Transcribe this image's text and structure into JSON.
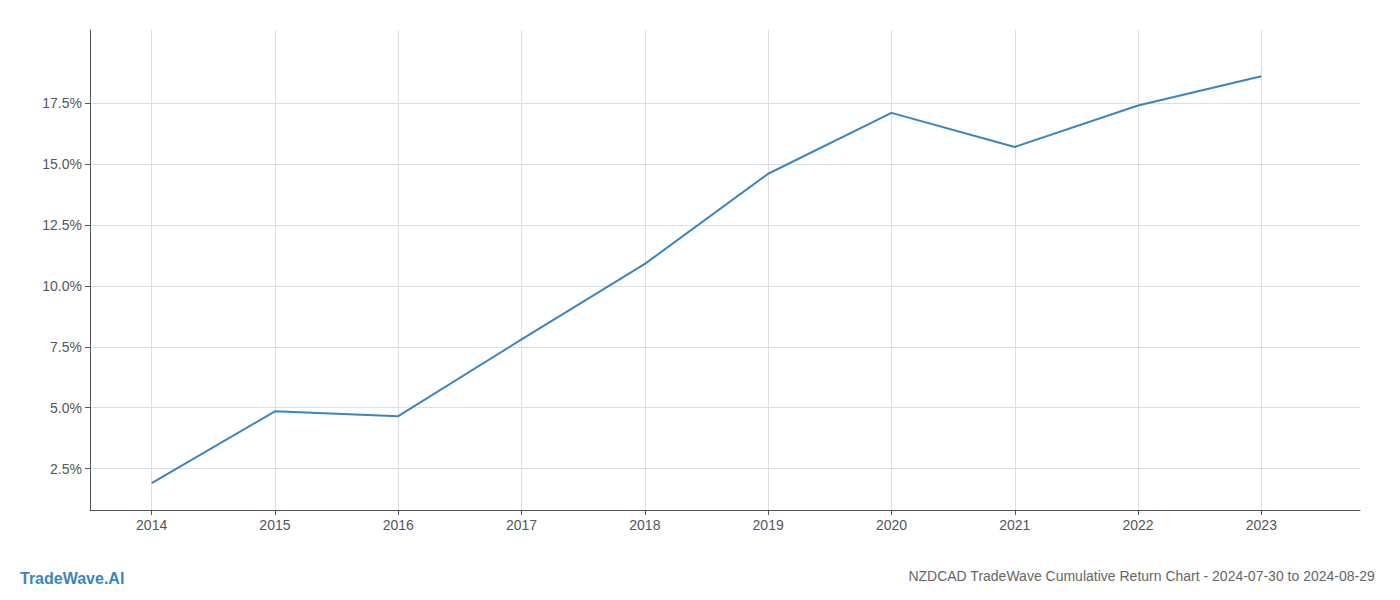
{
  "chart_data": {
    "type": "line",
    "title": "NZDCAD TradeWave Cumulative Return Chart - 2024-07-30 to 2024-08-29",
    "annotations": [
      "TradeWave.AI"
    ],
    "x": [
      2014,
      2015,
      2016,
      2017,
      2018,
      2019,
      2020,
      2021,
      2022,
      2023
    ],
    "values": [
      1.9,
      4.85,
      4.65,
      7.8,
      10.9,
      14.6,
      17.1,
      15.7,
      17.4,
      18.6
    ],
    "color": "#3a85c0",
    "xlim": [
      2013.5,
      2023.8
    ],
    "ylim": [
      0.8,
      20.5
    ],
    "xticks": [
      2014,
      2015,
      2016,
      2017,
      2018,
      2019,
      2020,
      2021,
      2022,
      2023
    ],
    "yticks": [
      {
        "value": 2.5,
        "label": "2.5%"
      },
      {
        "value": 5.0,
        "label": "5.0%"
      },
      {
        "value": 7.5,
        "label": "7.5%"
      },
      {
        "value": 10.0,
        "label": "10.0%"
      },
      {
        "value": 12.5,
        "label": "12.5%"
      },
      {
        "value": 15.0,
        "label": "15.0%"
      },
      {
        "value": 17.5,
        "label": "17.5%"
      }
    ],
    "grid": true
  }
}
